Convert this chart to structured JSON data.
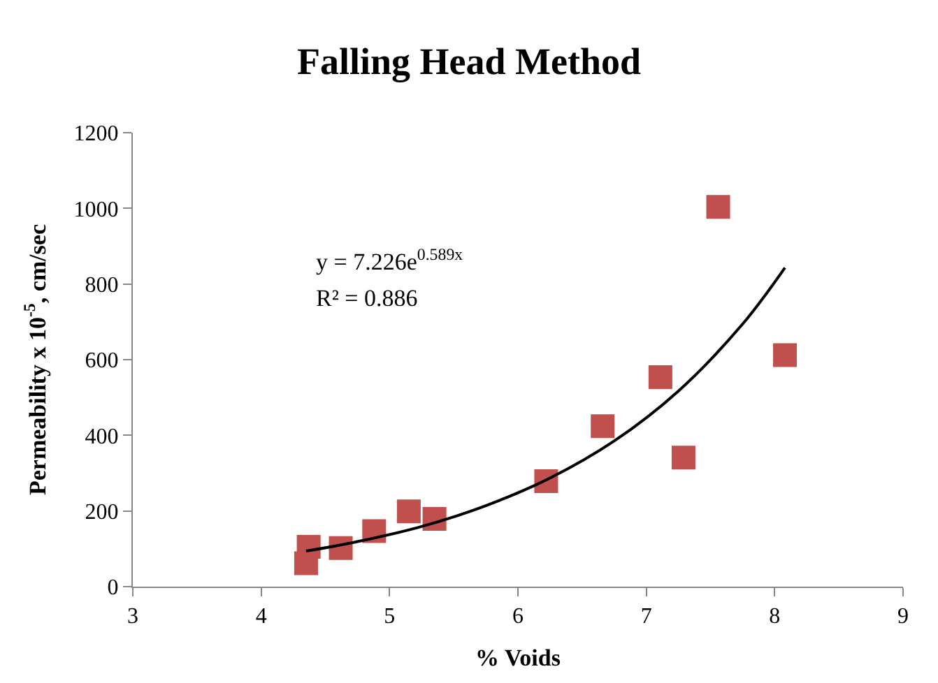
{
  "chart_data": {
    "type": "scatter",
    "title": "Falling Head Method",
    "xlabel": "% Voids",
    "ylabel": "Permeability x 10$^{-5}$, cm/sec",
    "xlim": [
      3,
      9
    ],
    "xticks": [
      3,
      4,
      5,
      6,
      7,
      8,
      9
    ],
    "ylim": [
      0,
      1200
    ],
    "yticks": [
      0,
      200,
      400,
      600,
      800,
      1000,
      1200
    ],
    "marker": "square",
    "series": [
      {
        "color": "#c0504d",
        "x": [
          4.35,
          4.37,
          4.62,
          4.88,
          5.15,
          5.35,
          6.22,
          6.66,
          7.11,
          7.29,
          7.56,
          8.08
        ],
        "values": [
          62,
          105,
          102,
          147,
          199,
          179,
          279,
          424,
          554,
          341,
          1004,
          612
        ]
      },
      {
        "type": "line",
        "color": "#000000",
        "marker": "none",
        "line_style": "solid",
        "x": [
          4.35,
          4.75,
          5.25,
          5.75,
          6.25,
          6.75,
          7.25,
          7.75,
          8.08
        ],
        "values": [
          94,
          119,
          159,
          214,
          287,
          385,
          517,
          694,
          843
        ]
      }
    ],
    "annotations": [
      "y = 7.226e$^{0.589x}$",
      "R² = 0.886"
    ]
  }
}
